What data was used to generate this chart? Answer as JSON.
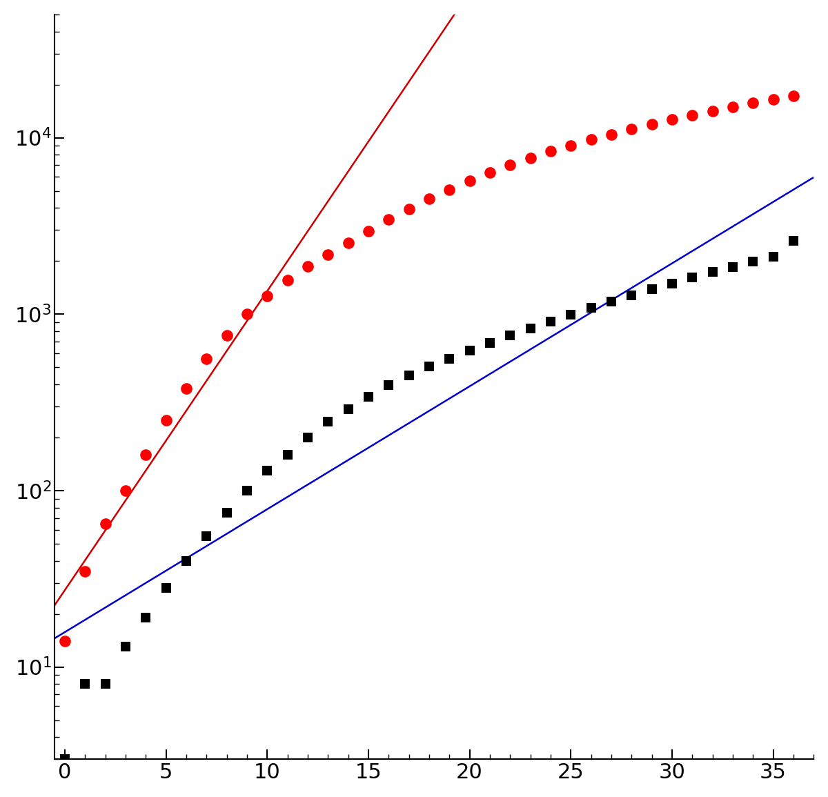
{
  "bg_color": "#ffffff",
  "marseille_color": "#000000",
  "paris_color": "#ff0000",
  "marseille_line_color": "#0000cc",
  "paris_line_color": "#cc0000",
  "tick_label_size": 22,
  "xlim": [
    -0.5,
    37
  ],
  "ylim": [
    3,
    50000
  ],
  "xtick_major": [
    0,
    5,
    10,
    15,
    20,
    25,
    30,
    35
  ],
  "marseille_days": [
    0,
    1,
    2,
    3,
    4,
    5,
    6,
    7,
    8,
    9,
    10,
    11,
    12,
    13,
    14,
    15,
    16,
    17,
    18,
    19,
    20,
    21,
    22,
    23,
    24,
    25,
    26,
    27,
    28,
    29,
    30,
    31,
    32,
    33,
    34,
    35,
    36
  ],
  "marseille_deaths": [
    3,
    8,
    8,
    13,
    19,
    28,
    40,
    55,
    75,
    100,
    130,
    160,
    200,
    245,
    290,
    340,
    395,
    450,
    505,
    560,
    620,
    685,
    755,
    830,
    910,
    995,
    1085,
    1180,
    1280,
    1385,
    1495,
    1610,
    1730,
    1855,
    1985,
    2120,
    2600
  ],
  "paris_days": [
    0,
    1,
    2,
    3,
    4,
    5,
    6,
    7,
    8,
    9,
    10,
    11,
    12,
    13,
    14,
    15,
    16,
    17,
    18,
    19,
    20,
    21,
    22,
    23,
    24,
    25,
    26,
    27,
    28,
    29,
    30,
    31,
    32,
    33,
    34,
    35,
    36
  ],
  "paris_deaths": [
    14,
    35,
    65,
    100,
    160,
    250,
    380,
    560,
    760,
    1000,
    1270,
    1560,
    1860,
    2180,
    2540,
    2950,
    3430,
    3950,
    4500,
    5090,
    5710,
    6350,
    7010,
    7680,
    8360,
    9050,
    9750,
    10460,
    11180,
    11910,
    12650,
    13400,
    14160,
    14930,
    15710,
    16500,
    17300
  ],
  "marseille_fit_slope": 0.0822,
  "marseille_fit_intercept": 0.699,
  "paris_fit_slope": 0.232,
  "paris_fit_intercept": 1.699,
  "paris_fit_xstart": -1.0,
  "paris_fit_xend": 34.5,
  "marseille_fit_xstart": -0.5,
  "marseille_fit_xend": 37.0
}
